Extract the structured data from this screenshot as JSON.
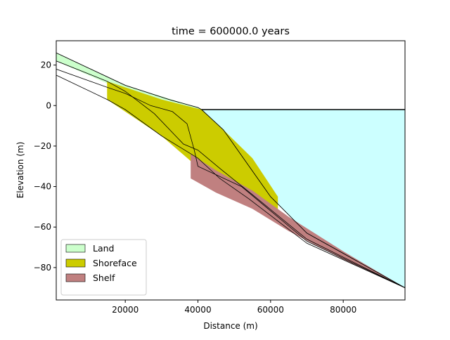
{
  "chart_data": {
    "type": "area",
    "title": "time = 600000.0 years",
    "xlabel": "Distance (m)",
    "ylabel": "Elevation (m)",
    "xlim": [
      1000,
      97000
    ],
    "ylim": [
      -96,
      32
    ],
    "xticks": [
      20000,
      40000,
      60000,
      80000
    ],
    "xtick_labels": [
      "20000",
      "40000",
      "60000",
      "80000"
    ],
    "yticks": [
      20,
      0,
      -20,
      -40,
      -60,
      -80
    ],
    "ytick_labels": [
      "20",
      "0",
      "−20",
      "−40",
      "−60",
      "−80"
    ],
    "grid": false,
    "legend": {
      "placement": "lower-left",
      "entries": [
        {
          "label": "Land",
          "color": "#ccffcc"
        },
        {
          "label": "Shoreface",
          "color": "#cccc00"
        },
        {
          "label": "Shelf",
          "color": "#c08080"
        }
      ]
    },
    "sea_level": -2,
    "water_color": "#ccffff",
    "surface": {
      "x": [
        1000,
        20000,
        32000,
        40000,
        41000,
        47000,
        60000,
        70000,
        80000,
        97000
      ],
      "y": [
        26,
        10,
        3,
        -1,
        -2,
        -12,
        -45,
        -63,
        -73,
        -90
      ]
    },
    "horizons": [
      {
        "x": [
          1000,
          15000,
          20000,
          28000,
          36000,
          40000,
          46000,
          55000,
          70000,
          97000
        ],
        "y": [
          22,
          12,
          7,
          -4,
          -19,
          -22,
          -31,
          -44,
          -66,
          -90
        ]
      },
      {
        "x": [
          1000,
          15000,
          20000,
          27000,
          33000,
          37000,
          39000,
          40000,
          52000,
          70000,
          97000
        ],
        "y": [
          18,
          9,
          6,
          0,
          -3,
          -9,
          -22,
          -30,
          -40,
          -67,
          -90
        ]
      },
      {
        "x": [
          1000,
          15000,
          20000,
          30000,
          40000,
          46000,
          54000,
          70000,
          97000
        ],
        "y": [
          15,
          3,
          -2,
          -15,
          -26,
          -36,
          -46,
          -68,
          -90
        ]
      }
    ],
    "layers": [
      {
        "facies": "Land",
        "color": "#ccffcc",
        "x": [
          1000,
          20000,
          40000,
          41000
        ],
        "top": [
          26,
          10,
          -1,
          -2
        ],
        "bottom": [
          22,
          7,
          -19,
          -22
        ]
      },
      {
        "facies": "Shoreface",
        "color": "#cccc00",
        "x": [
          15000,
          30000,
          41000,
          47000,
          55000,
          62000
        ],
        "top": [
          12,
          3,
          -2,
          -12,
          -26,
          -45
        ],
        "bottom": [
          3,
          -15,
          -32,
          -42,
          -47,
          -52
        ]
      },
      {
        "facies": "Shelf",
        "color": "#c08080",
        "x": [
          38000,
          45000,
          55000,
          65000,
          80000,
          97000
        ],
        "top": [
          -24,
          -32,
          -42,
          -55,
          -72,
          -90
        ],
        "bottom": [
          -36,
          -43,
          -51,
          -62,
          -76,
          -90
        ]
      }
    ]
  }
}
